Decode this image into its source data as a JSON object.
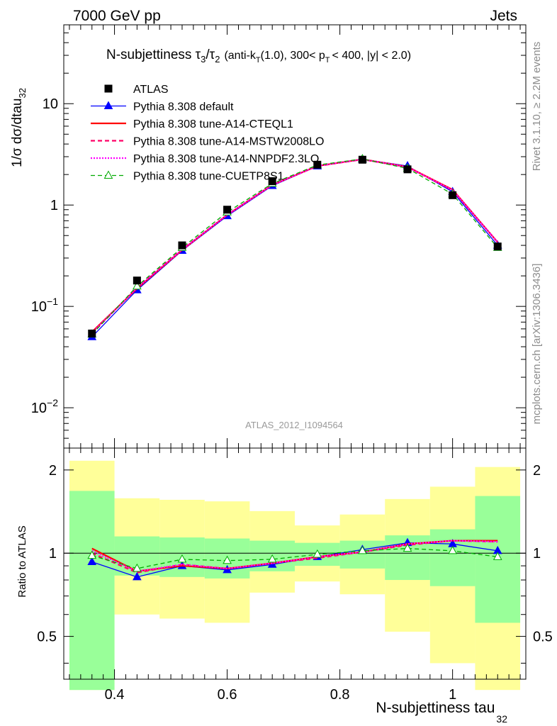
{
  "header": {
    "left": "7000 GeV pp",
    "right": "Jets"
  },
  "side_text": {
    "rivet": "Rivet 3.1.10, ≥ 2.2M events",
    "mcplots": "mcplots.cern.ch [arXiv:1306.3436]"
  },
  "title": {
    "main": "N-subjettiness τ",
    "sub1": "3",
    "slash": "/τ",
    "sub2": "2",
    "cut_a": "(anti-k",
    "cut_sub": "T",
    "cut_b": "(1.0), 300< p",
    "cut_sub2": "T",
    "cut_c": "< 400, |y| < 2.0)"
  },
  "watermark": "ATLAS_2012_I1094564",
  "axes": {
    "ylabel_main": "1/σ dσ/dtau",
    "ylabel_main_sub": "32",
    "ylabel_ratio": "Ratio to ATLAS",
    "xlabel": "N-subjettiness tau",
    "xlabel_sub": "32",
    "main_ticks": [
      {
        "base": "10",
        "exp": "−2"
      },
      {
        "base": "10",
        "exp": "−1"
      },
      {
        "base": "1",
        "exp": ""
      },
      {
        "base": "10",
        "exp": ""
      }
    ],
    "ratio_ticks": [
      "0.5",
      "1",
      "2"
    ],
    "x_ticks": [
      "0.4",
      "0.6",
      "0.8",
      "1"
    ]
  },
  "legend": [
    {
      "label": "ATLAS",
      "color": "#000000"
    },
    {
      "label": "Pythia 8.308 default",
      "color": "#0000ff"
    },
    {
      "label": "Pythia 8.308 tune-A14-CTEQL1",
      "color": "#ff0000"
    },
    {
      "label": "Pythia 8.308 tune-A14-MSTW2008LO",
      "color": "#ff0066"
    },
    {
      "label": "Pythia 8.308 tune-A14-NNPDF2.3LO",
      "color": "#ff00ff"
    },
    {
      "label": "Pythia 8.308 tune-CUETP8S1",
      "color": "#00aa00"
    }
  ],
  "chart_data": {
    "type": "line",
    "xlabel": "N-subjettiness tau_32",
    "ylabel": "1/σ dσ/dtau_32",
    "xlim": [
      0.31,
      1.13
    ],
    "ylim": [
      0.004,
      60
    ],
    "yscale": "log",
    "ratio_ylim": [
      0.35,
      2.4
    ],
    "ratio_yscale": "log",
    "bin_edges": [
      0.32,
      0.4,
      0.48,
      0.56,
      0.64,
      0.72,
      0.8,
      0.88,
      0.96,
      1.04,
      1.12
    ],
    "x": [
      0.36,
      0.44,
      0.52,
      0.6,
      0.68,
      0.76,
      0.84,
      0.92,
      1.0,
      1.08
    ],
    "data": {
      "name": "ATLAS",
      "values": [
        0.054,
        0.18,
        0.4,
        0.9,
        1.72,
        2.5,
        2.8,
        2.25,
        1.25,
        0.39
      ],
      "band_inner": [
        [
          0.32,
          1.68
        ],
        [
          0.83,
          1.15
        ],
        [
          0.82,
          1.14
        ],
        [
          0.81,
          1.13
        ],
        [
          0.86,
          1.11
        ],
        [
          0.9,
          1.09
        ],
        [
          0.88,
          1.11
        ],
        [
          0.8,
          1.16
        ],
        [
          0.76,
          1.22
        ],
        [
          0.56,
          1.61
        ]
      ],
      "band_outer": [
        [
          0.32,
          2.16
        ],
        [
          0.6,
          1.58
        ],
        [
          0.58,
          1.56
        ],
        [
          0.56,
          1.54
        ],
        [
          0.72,
          1.42
        ],
        [
          0.79,
          1.26
        ],
        [
          0.71,
          1.38
        ],
        [
          0.52,
          1.57
        ],
        [
          0.4,
          1.74
        ],
        [
          0.32,
          2.05
        ]
      ]
    },
    "series": [
      {
        "name": "Pythia 8.308 default",
        "style": "solid",
        "marker": "triangle",
        "values": [
          0.05,
          0.145,
          0.355,
          0.78,
          1.55,
          2.42,
          2.83,
          2.43,
          1.35,
          0.4
        ],
        "ratio": [
          0.93,
          0.82,
          0.9,
          0.87,
          0.91,
          0.97,
          1.03,
          1.09,
          1.08,
          1.02
        ]
      },
      {
        "name": "Pythia 8.308 tune-A14-CTEQL1",
        "style": "solid",
        "marker": "none",
        "values": [
          0.056,
          0.15,
          0.36,
          0.8,
          1.58,
          2.43,
          2.83,
          2.38,
          1.42,
          0.43
        ],
        "ratio": [
          1.04,
          0.86,
          0.9,
          0.88,
          0.92,
          0.97,
          1.01,
          1.08,
          1.11,
          1.11
        ]
      },
      {
        "name": "Pythia 8.308 tune-A14-MSTW2008LO",
        "style": "dashed",
        "marker": "none",
        "values": [
          0.054,
          0.153,
          0.365,
          0.8,
          1.58,
          2.42,
          2.82,
          2.36,
          1.4,
          0.43
        ],
        "ratio": [
          1.0,
          0.85,
          0.91,
          0.88,
          0.92,
          0.96,
          1.01,
          1.07,
          1.11,
          1.1
        ]
      },
      {
        "name": "Pythia 8.308 tune-A14-NNPDF2.3LO",
        "style": "dotted",
        "marker": "none",
        "values": [
          0.055,
          0.152,
          0.362,
          0.8,
          1.58,
          2.43,
          2.83,
          2.37,
          1.41,
          0.43
        ],
        "ratio": [
          1.02,
          0.86,
          0.91,
          0.88,
          0.92,
          0.97,
          1.01,
          1.08,
          1.11,
          1.1
        ]
      },
      {
        "name": "Pythia 8.308 tune-CUETP8S1",
        "style": "dashed",
        "marker": "open-triangle",
        "values": [
          0.053,
          0.158,
          0.38,
          0.85,
          1.63,
          2.48,
          2.85,
          2.3,
          1.28,
          0.38
        ],
        "ratio": [
          0.98,
          0.88,
          0.95,
          0.94,
          0.95,
          0.99,
          1.02,
          1.04,
          1.02,
          0.97
        ]
      }
    ]
  }
}
